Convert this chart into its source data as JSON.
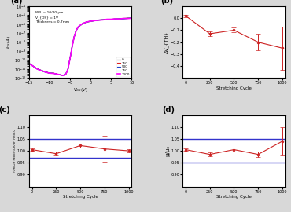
{
  "panel_a": {
    "label": "(a)",
    "xlabel": "V_{GS}(V)",
    "ylabel": "I_{DS}(A)",
    "annotation": "W/L = 10/20 μm\nV_{DS} = 1V\nThickness = 0.7mm",
    "xlim": [
      -15,
      10
    ],
    "ylim_log": [
      -12,
      -4
    ],
    "legend_labels": [
      "0",
      "250",
      "500",
      "750",
      "1000"
    ],
    "legend_colors": [
      "black",
      "#dd2222",
      "#2244cc",
      "#00bbaa",
      "magenta"
    ],
    "vgs": [
      -15,
      -14,
      -13,
      -12,
      -11,
      -10,
      -9,
      -8,
      -7.5,
      -7,
      -6.5,
      -6,
      -5.5,
      -5,
      -4.5,
      -4,
      -3.5,
      -3,
      -2,
      -1,
      0,
      1,
      2,
      3,
      4,
      5,
      6,
      7,
      8,
      9,
      10
    ],
    "ids_log": [
      -10.4,
      -10.7,
      -11.0,
      -11.2,
      -11.35,
      -11.45,
      -11.5,
      -11.6,
      -11.65,
      -11.7,
      -11.75,
      -11.55,
      -11.0,
      -9.8,
      -8.5,
      -7.4,
      -6.7,
      -6.3,
      -5.95,
      -5.75,
      -5.65,
      -5.6,
      -5.55,
      -5.5,
      -5.48,
      -5.45,
      -5.42,
      -5.4,
      -5.38,
      -5.35,
      -5.32
    ]
  },
  "panel_b": {
    "label": "(b)",
    "xlabel": "Stretching Cycle",
    "ylabel": "ΔV_{TH}",
    "xlim": [
      -30,
      1030
    ],
    "ylim": [
      -0.5,
      0.1
    ],
    "yticks": [
      -0.4,
      -0.3,
      -0.2,
      -0.1,
      0.0
    ],
    "x": [
      0,
      250,
      500,
      750,
      1000
    ],
    "y": [
      0.02,
      -0.13,
      -0.1,
      -0.2,
      -0.25
    ],
    "yerr": [
      0.01,
      0.02,
      0.02,
      0.07,
      0.18
    ],
    "color": "#cc2222"
  },
  "panel_c": {
    "label": "(c)",
    "xlabel": "Stretching Cycle",
    "ylabel": "(On/Off ratio)/(On/off ratio)₀",
    "xlim": [
      -30,
      1030
    ],
    "ylim": [
      0.85,
      1.15
    ],
    "yticks": [
      0.9,
      0.95,
      1.0,
      1.05,
      1.1
    ],
    "x": [
      0,
      250,
      500,
      750,
      1000
    ],
    "y": [
      1.005,
      0.988,
      1.022,
      1.008,
      1.0
    ],
    "yerr": [
      0.004,
      0.008,
      0.008,
      0.055,
      0.008
    ],
    "color": "#cc2222",
    "hlines": [
      1.05,
      0.97
    ],
    "hline_color": "#3333cc"
  },
  "panel_d": {
    "label": "(d)",
    "xlabel": "Stretching Cycle",
    "ylabel": "μ/μ₀",
    "xlim": [
      -30,
      1030
    ],
    "ylim": [
      0.85,
      1.15
    ],
    "yticks": [
      0.9,
      0.95,
      1.0,
      1.05,
      1.1
    ],
    "x": [
      0,
      250,
      500,
      750,
      1000
    ],
    "y": [
      1.005,
      0.985,
      1.005,
      0.985,
      1.04
    ],
    "yerr": [
      0.004,
      0.008,
      0.008,
      0.012,
      0.06
    ],
    "color": "#cc2222",
    "hlines": [
      1.05,
      0.95
    ],
    "hline_color": "#3333cc"
  },
  "fig_bg": "#d8d8d8",
  "plot_bg": "#ffffff",
  "xticks_bcd": [
    0,
    250,
    500,
    750,
    1000
  ]
}
